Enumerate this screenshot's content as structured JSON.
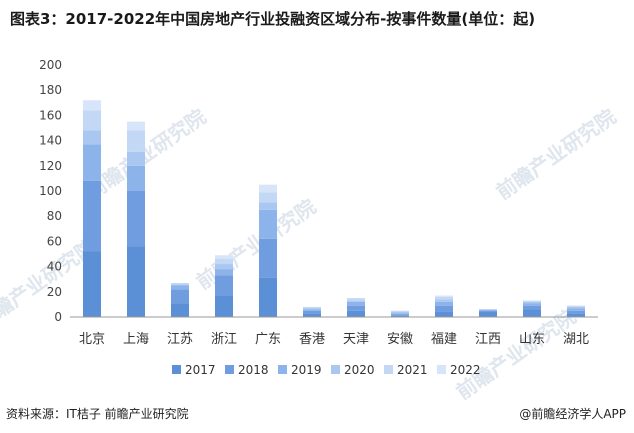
{
  "chart_data": {
    "type": "bar",
    "stacked": true,
    "title": "图表3：2017-2022年中国房地产行业投融资区域分布-按事件数量(单位：起)",
    "categories": [
      "北京",
      "上海",
      "江苏",
      "浙江",
      "广东",
      "香港",
      "天津",
      "安徽",
      "福建",
      "江西",
      "山东",
      "湖北"
    ],
    "series": [
      {
        "name": "2017",
        "color": "#5b8fd6",
        "values": [
          52,
          56,
          11,
          17,
          31,
          3,
          5,
          1,
          4,
          4,
          6,
          3
        ]
      },
      {
        "name": "2018",
        "color": "#6f9de0",
        "values": [
          56,
          44,
          11,
          16,
          31,
          2,
          4,
          1,
          5,
          1,
          3,
          2
        ]
      },
      {
        "name": "2019",
        "color": "#8cb4ea",
        "values": [
          29,
          20,
          3,
          5,
          23,
          1,
          3,
          1,
          3,
          1,
          2,
          2
        ]
      },
      {
        "name": "2020",
        "color": "#a9c7f0",
        "values": [
          11,
          11,
          1,
          4,
          6,
          1,
          1,
          1,
          2,
          0,
          1,
          1
        ]
      },
      {
        "name": "2021",
        "color": "#c2d8f5",
        "values": [
          16,
          17,
          1,
          4,
          8,
          1,
          2,
          1,
          2,
          0,
          1,
          1
        ]
      },
      {
        "name": "2022",
        "color": "#d6e5f9",
        "values": [
          8,
          7,
          0,
          3,
          6,
          0,
          0,
          0,
          1,
          0,
          0,
          0
        ]
      }
    ],
    "ylim": [
      0,
      200
    ],
    "yticks": [
      0,
      20,
      40,
      60,
      80,
      100,
      120,
      140,
      160,
      180,
      200
    ],
    "grid": false,
    "legend_position": "bottom"
  },
  "watermark": "前瞻产业研究院",
  "footer": {
    "source": "资料来源：IT桔子 前瞻产业研究院",
    "brand": "@前瞻经济学人APP"
  }
}
